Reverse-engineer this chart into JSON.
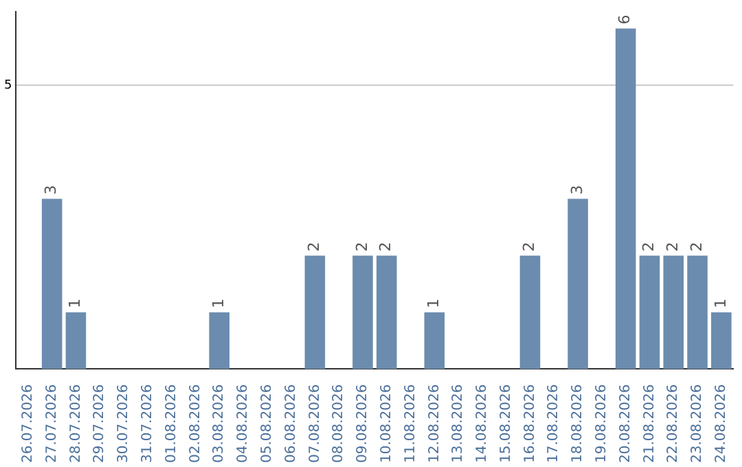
{
  "chart_data": {
    "type": "bar",
    "categories": [
      "26.07.2026",
      "27.07.2026",
      "28.07.2026",
      "29.07.2026",
      "30.07.2026",
      "31.07.2026",
      "01.08.2026",
      "02.08.2026",
      "03.08.2026",
      "04.08.2026",
      "05.08.2026",
      "06.08.2026",
      "07.08.2026",
      "08.08.2026",
      "09.08.2026",
      "10.08.2026",
      "11.08.2026",
      "12.08.2026",
      "13.08.2026",
      "14.08.2026",
      "15.08.2026",
      "16.08.2026",
      "17.08.2026",
      "18.08.2026",
      "19.08.2026",
      "20.08.2026",
      "21.08.2026",
      "22.08.2026",
      "23.08.2026",
      "24.08.2026"
    ],
    "values": [
      null,
      3,
      1,
      null,
      null,
      null,
      null,
      null,
      1,
      null,
      null,
      null,
      2,
      null,
      2,
      2,
      null,
      1,
      null,
      null,
      null,
      2,
      null,
      3,
      null,
      6,
      2,
      2,
      2,
      1
    ],
    "color": "#6b8cae",
    "ylim": [
      0,
      6.3
    ],
    "yticks": [
      5
    ],
    "grid": "y",
    "data_labels": true
  }
}
